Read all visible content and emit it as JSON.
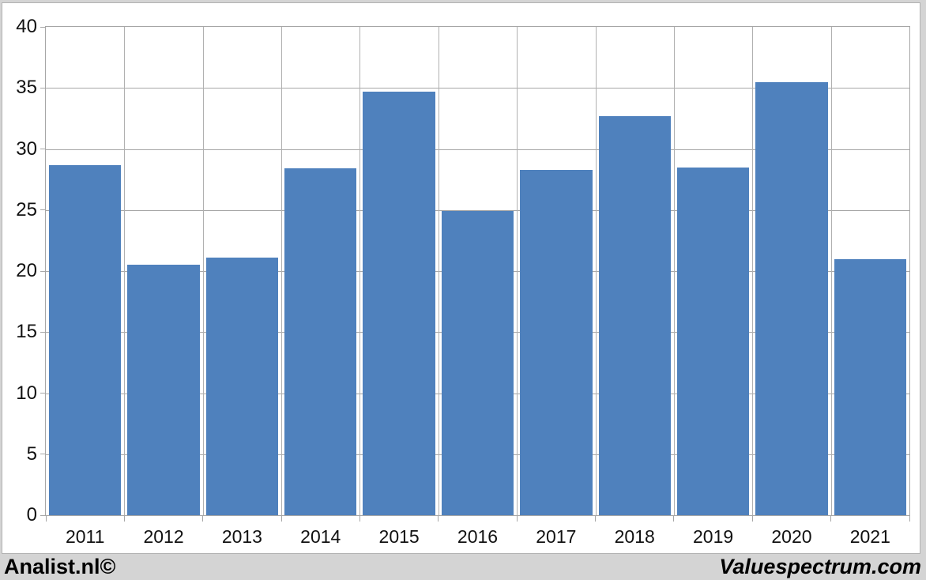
{
  "chart_data": {
    "type": "bar",
    "title": "",
    "xlabel": "",
    "ylabel": "",
    "categories": [
      "2011",
      "2012",
      "2013",
      "2014",
      "2015",
      "2016",
      "2017",
      "2018",
      "2019",
      "2020",
      "2021"
    ],
    "values": [
      28.7,
      20.5,
      21.1,
      28.4,
      34.7,
      24.9,
      28.3,
      32.7,
      28.5,
      35.5,
      21.0
    ],
    "ylim": [
      0,
      40
    ],
    "yticks": [
      0,
      5,
      10,
      15,
      20,
      25,
      30,
      35,
      40
    ],
    "grid": "on",
    "legend": "none",
    "bar_color": "#4f81bd",
    "gridline_color": "#a6a6a6",
    "plot_background": "#ffffff",
    "frame_color": "#d4d4d4"
  },
  "footer": {
    "left_label": "Analist.nl©",
    "right_label": "Valuespectrum.com"
  }
}
